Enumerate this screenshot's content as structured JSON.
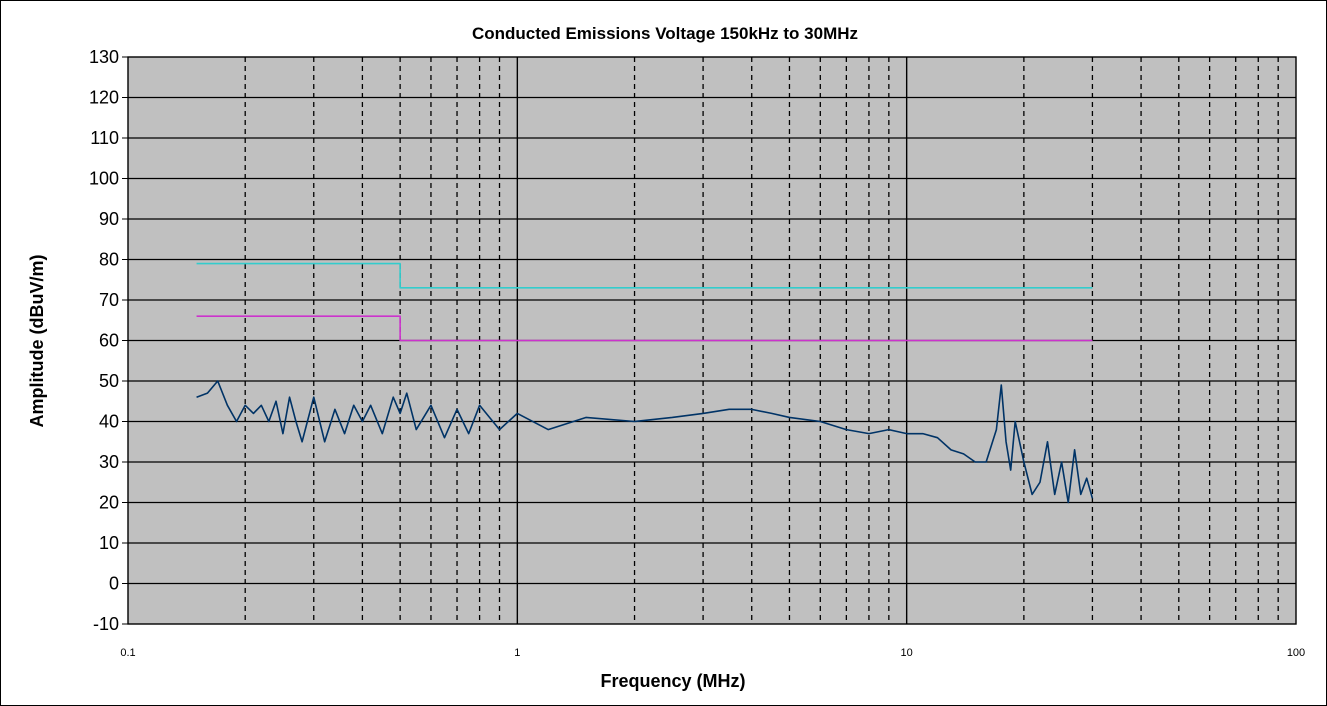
{
  "chart_data": {
    "type": "line",
    "title": "Conducted Emissions Voltage 150kHz to 30MHz",
    "xlabel": "Frequency (MHz)",
    "ylabel": "Amplitude (dBuV/m)",
    "x_scale": "log",
    "xlim": [
      0.1,
      100
    ],
    "ylim": [
      -10,
      130
    ],
    "y_ticks": [
      -10,
      0,
      10,
      20,
      30,
      40,
      50,
      60,
      70,
      80,
      90,
      100,
      110,
      120,
      130
    ],
    "x_ticks": [
      0.1,
      1,
      10,
      100
    ],
    "x_tick_labels": [
      "0.1",
      "1",
      "10",
      "100"
    ],
    "grid": true,
    "plot_background": "#c0c0c0",
    "series": [
      {
        "color": "#33cccc",
        "x": [
          0.15,
          0.5,
          0.5,
          30
        ],
        "y": [
          79,
          79,
          73,
          73
        ]
      },
      {
        "color": "#cc33cc",
        "x": [
          0.15,
          0.5,
          0.5,
          30
        ],
        "y": [
          66,
          66,
          60,
          60
        ]
      },
      {
        "color": "#003366",
        "x": [
          0.15,
          0.16,
          0.17,
          0.18,
          0.19,
          0.2,
          0.21,
          0.22,
          0.23,
          0.24,
          0.25,
          0.26,
          0.27,
          0.28,
          0.3,
          0.32,
          0.34,
          0.36,
          0.38,
          0.4,
          0.42,
          0.45,
          0.48,
          0.5,
          0.52,
          0.55,
          0.6,
          0.65,
          0.7,
          0.75,
          0.8,
          0.9,
          1.0,
          1.2,
          1.5,
          2.0,
          2.5,
          3.0,
          3.5,
          4.0,
          4.5,
          5.0,
          6.0,
          7.0,
          8.0,
          9.0,
          10.0,
          11.0,
          12.0,
          13.0,
          14.0,
          15.0,
          16.0,
          17.0,
          17.5,
          18.0,
          18.5,
          19.0,
          20.0,
          21.0,
          22.0,
          23.0,
          24.0,
          25.0,
          26.0,
          27.0,
          28.0,
          29.0,
          30.0
        ],
        "y": [
          46,
          47,
          50,
          44,
          40,
          44,
          42,
          44,
          40,
          45,
          37,
          46,
          40,
          35,
          46,
          35,
          43,
          37,
          44,
          40,
          44,
          37,
          46,
          42,
          47,
          38,
          44,
          36,
          43,
          37,
          44,
          38,
          42,
          38,
          41,
          40,
          41,
          42,
          43,
          43,
          42,
          41,
          40,
          38,
          37,
          38,
          37,
          37,
          36,
          33,
          32,
          30,
          30,
          38,
          49,
          35,
          28,
          40,
          30,
          22,
          25,
          35,
          22,
          30,
          20,
          33,
          22,
          26,
          21
        ]
      }
    ]
  }
}
